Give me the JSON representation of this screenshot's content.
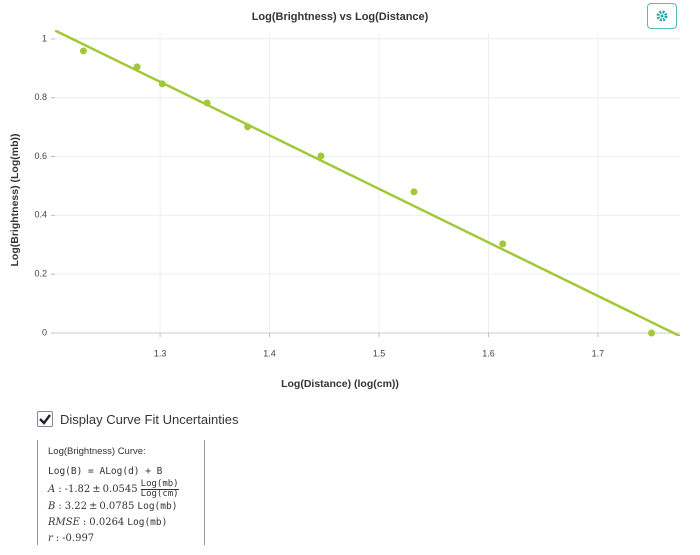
{
  "chart_data": {
    "type": "scatter",
    "title": "Log(Brightness) vs Log(Distance)",
    "x_label": "Log(Distance) (log(cm))",
    "y_label": "Log(Brightness) (Log(mb))",
    "color": "#a2c83a",
    "grid": true,
    "x": [
      1.23,
      1.279,
      1.302,
      1.343,
      1.38,
      1.447,
      1.532,
      1.613,
      1.749
    ],
    "values": [
      0.959,
      0.905,
      0.847,
      0.782,
      0.701,
      0.602,
      0.48,
      0.303,
      0
    ],
    "xlim": [
      1.204,
      1.775
    ],
    "ylim": [
      0,
      1.02
    ],
    "xticks": [
      1.3,
      1.4,
      1.5,
      1.6,
      1.7
    ],
    "yticks": [
      0,
      0.2,
      0.4,
      0.6,
      0.8,
      1
    ],
    "fit": {
      "title": "Log(Brightness) Curve:",
      "equation": "Log(B) = ALog(d) + B",
      "separator": ":",
      "pm": "±",
      "params": [
        {
          "name": "A",
          "value": -1.82,
          "error": 0.0545,
          "unit_num": "Log(mb)",
          "unit_den": "Log(cm)"
        },
        {
          "name": "B",
          "value": 3.22,
          "error": 0.0785,
          "unit": "Log(mb)"
        },
        {
          "name": "RMSE",
          "value": 0.0264,
          "unit": "Log(mb)"
        },
        {
          "name": "r",
          "value": -0.997
        }
      ]
    }
  },
  "checkbox": {
    "label": "Display Curve Fit Uncertainties",
    "checked": true
  }
}
